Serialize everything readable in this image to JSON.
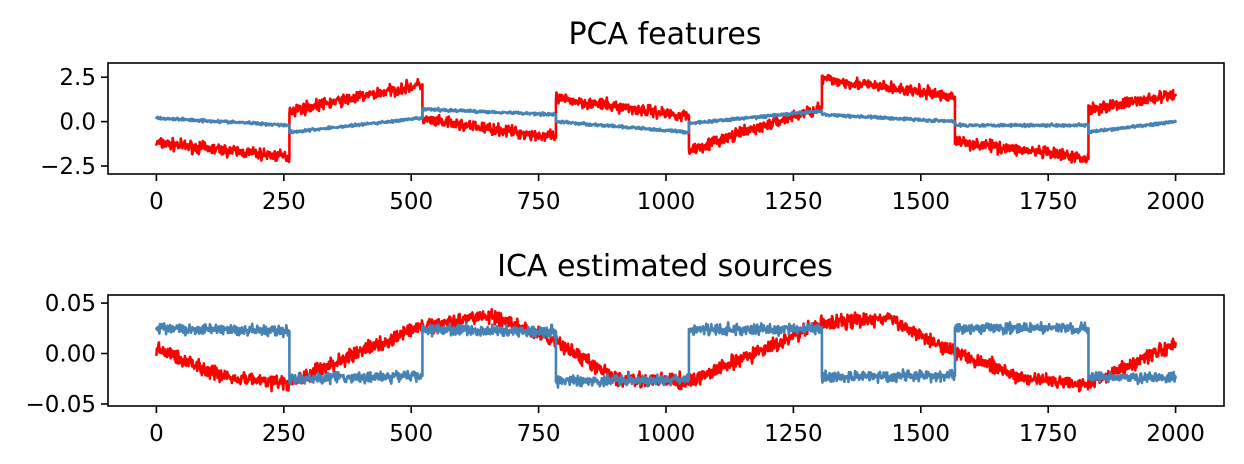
{
  "chart_data": [
    {
      "type": "line",
      "title": "PCA features",
      "xlabel": "",
      "ylabel": "",
      "xlim": [
        -95,
        2095
      ],
      "ylim": [
        -2.95,
        3.3
      ],
      "xticks": [
        0,
        250,
        500,
        750,
        1000,
        1250,
        1500,
        1750,
        2000
      ],
      "xtick_labels": [
        "0",
        "250",
        "500",
        "750",
        "1000",
        "1250",
        "1500",
        "1750",
        "2000"
      ],
      "yticks": [
        2.5,
        0.0,
        -2.5
      ],
      "ytick_labels": [
        "2.5",
        "0.0",
        "−2.5"
      ],
      "grid": false,
      "series": [
        {
          "color": "#ff0000",
          "noise": 0.28,
          "x": [
            0,
            261,
            261,
            522,
            522,
            784,
            784,
            1045,
            1045,
            1306,
            1306,
            1567,
            1567,
            1829,
            1829,
            2000
          ],
          "values": [
            -1.2,
            -2.0,
            0.6,
            2.1,
            0.1,
            -0.9,
            1.3,
            0.3,
            -1.6,
            0.8,
            2.4,
            1.4,
            -1.1,
            -2.1,
            0.7,
            1.5
          ]
        },
        {
          "color": "#4682b4",
          "noise": 0.07,
          "x": [
            0,
            261,
            261,
            522,
            522,
            784,
            784,
            1045,
            1045,
            1306,
            1306,
            1567,
            1567,
            1829,
            1829,
            2000
          ],
          "values": [
            0.2,
            -0.2,
            -0.6,
            0.2,
            0.7,
            0.4,
            0.0,
            -0.6,
            -0.1,
            0.6,
            0.4,
            0.0,
            -0.2,
            -0.2,
            -0.6,
            0.0
          ]
        }
      ]
    },
    {
      "type": "line",
      "title": "ICA estimated sources",
      "xlabel": "",
      "ylabel": "",
      "xlim": [
        -95,
        2095
      ],
      "ylim": [
        -0.052,
        0.058
      ],
      "xticks": [
        0,
        250,
        500,
        750,
        1000,
        1250,
        1500,
        1750,
        2000
      ],
      "xtick_labels": [
        "0",
        "250",
        "500",
        "750",
        "1000",
        "1250",
        "1500",
        "1750",
        "2000"
      ],
      "yticks": [
        0.05,
        0.0,
        -0.05
      ],
      "ytick_labels": [
        "0.05",
        "0.00",
        "−0.05"
      ],
      "grid": false,
      "series": [
        {
          "color": "#ff0000",
          "noise": 0.006,
          "x": [
            0,
            130,
            261,
            392,
            522,
            650,
            784,
            900,
            1045,
            1175,
            1306,
            1435,
            1567,
            1700,
            1829,
            2000
          ],
          "values": [
            0.005,
            -0.022,
            -0.03,
            0.0,
            0.027,
            0.038,
            0.012,
            -0.025,
            -0.028,
            0.0,
            0.03,
            0.035,
            0.002,
            -0.025,
            -0.03,
            0.01
          ]
        },
        {
          "color": "#4682b4",
          "noise": 0.0045,
          "x": [
            0,
            261,
            261,
            522,
            522,
            784,
            784,
            1045,
            1045,
            1306,
            1306,
            1567,
            1567,
            1829,
            1829,
            2000
          ],
          "values": [
            0.025,
            0.022,
            -0.025,
            -0.022,
            0.024,
            0.022,
            -0.027,
            -0.026,
            0.023,
            0.025,
            -0.023,
            -0.022,
            0.025,
            0.025,
            -0.023,
            -0.024
          ]
        }
      ]
    }
  ]
}
